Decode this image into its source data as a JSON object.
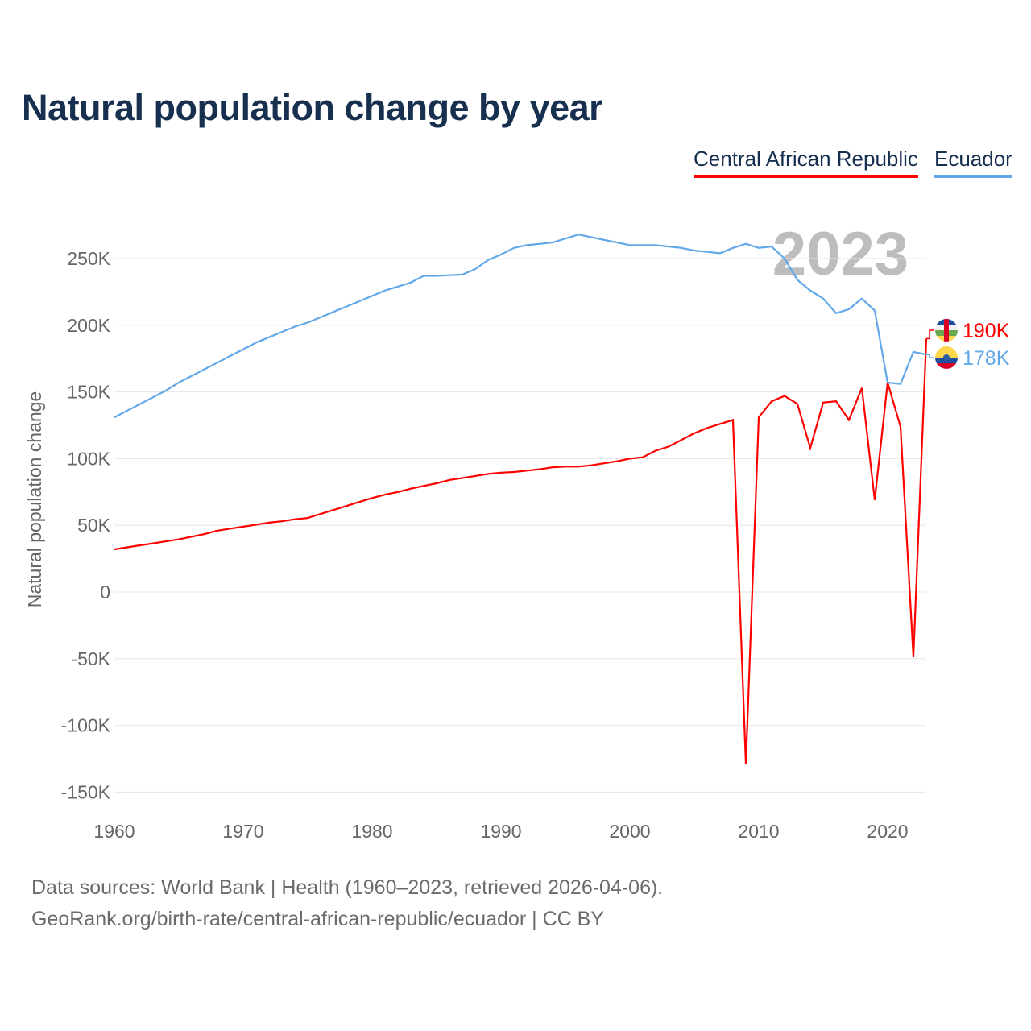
{
  "title": "Natural population change by year",
  "footer": {
    "line1": "Data sources: World Bank | Health (1960–2023, retrieved 2026-04-06).",
    "line2": "GeoRank.org/birth-rate/central-african-republic/ecuador | CC BY"
  },
  "chart_data": {
    "type": "line",
    "title": "Natural population change by year",
    "xlabel": "",
    "ylabel": "Natural population change",
    "year_watermark": "2023",
    "xlim": [
      1960,
      2023
    ],
    "ylim": [
      -150000,
      250000
    ],
    "x_ticks": [
      "1960",
      "1970",
      "1980",
      "1990",
      "2000",
      "2010",
      "2020"
    ],
    "y_ticks": [
      {
        "value": 250000,
        "label": "250K"
      },
      {
        "value": 200000,
        "label": "200K"
      },
      {
        "value": 150000,
        "label": "150K"
      },
      {
        "value": 100000,
        "label": "100K"
      },
      {
        "value": 50000,
        "label": "50K"
      },
      {
        "value": 0,
        "label": "0"
      },
      {
        "value": -50000,
        "label": "-50K"
      },
      {
        "value": -100000,
        "label": "-100K"
      },
      {
        "value": -150000,
        "label": "-150K"
      }
    ],
    "grid": true,
    "legend_placement": "top-right",
    "start_year": 1960,
    "series": [
      {
        "name": "Central African Republic",
        "color": "#ff0000",
        "end_label": "190K",
        "flag": "central-african-republic-flag",
        "values": [
          32000,
          33500,
          35000,
          36500,
          38000,
          39500,
          41500,
          43500,
          46000,
          47500,
          49000,
          50500,
          52000,
          53000,
          54500,
          55500,
          58500,
          61500,
          64500,
          67500,
          70500,
          73000,
          75000,
          77500,
          79500,
          81500,
          84000,
          85500,
          87000,
          88500,
          89500,
          90000,
          91000,
          92000,
          93500,
          94000,
          94000,
          95000,
          96500,
          98000,
          100000,
          101000,
          106000,
          109000,
          114000,
          119000,
          123000,
          126000,
          129000,
          -129000,
          131000,
          143000,
          147000,
          141000,
          108000,
          142000,
          143000,
          129000,
          153000,
          69000,
          157000,
          124000,
          -49000,
          190000
        ]
      },
      {
        "name": "Ecuador",
        "color": "#62a8e8",
        "end_label": "178K",
        "flag": "ecuador-flag",
        "values": [
          131000,
          136000,
          141000,
          146000,
          151000,
          157000,
          162000,
          167000,
          172000,
          177000,
          182000,
          187000,
          191000,
          195000,
          199000,
          202000,
          206000,
          210000,
          214000,
          218000,
          222000,
          226000,
          229000,
          232000,
          237000,
          237000,
          237500,
          238000,
          242000,
          249000,
          253000,
          258000,
          260000,
          261000,
          262000,
          265000,
          268000,
          266000,
          264000,
          262000,
          260000,
          260000,
          260000,
          259000,
          258000,
          256000,
          255000,
          254000,
          258000,
          261000,
          258000,
          259000,
          250000,
          234000,
          226000,
          220000,
          209000,
          212000,
          220000,
          211000,
          157000,
          156000,
          180000,
          178000
        ]
      }
    ]
  }
}
